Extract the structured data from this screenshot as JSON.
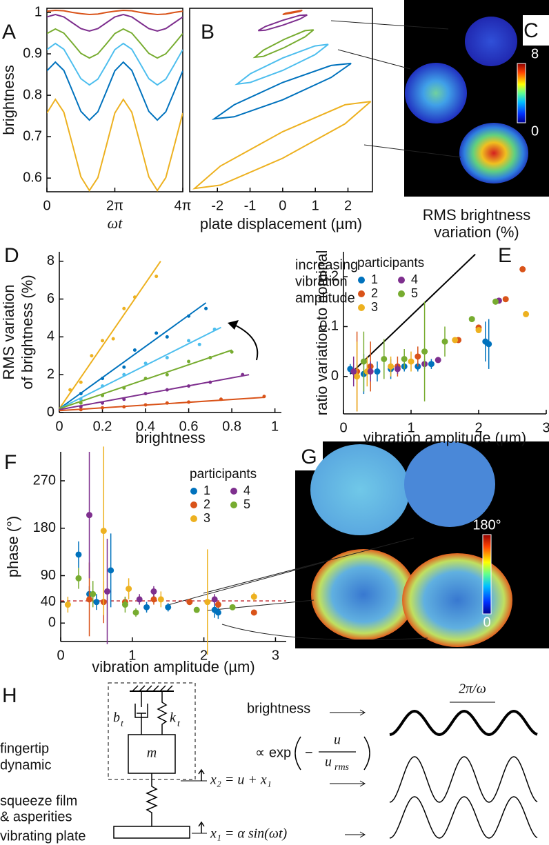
{
  "chart_data": [
    {
      "type": "line",
      "panel": "A",
      "xlabel": "ωt",
      "ylabel": "brightness",
      "x": [
        0,
        0.785,
        1.571,
        2.356,
        3.142,
        3.927,
        4.712,
        5.498,
        6.283,
        7.069,
        7.854,
        8.639,
        9.425,
        10.21,
        10.996,
        11.781,
        12.566
      ],
      "xlim": [
        0,
        12.566
      ],
      "xticks": [
        0,
        {
          "value": 6.283,
          "label": "2π"
        },
        {
          "value": 12.566,
          "label": "4π"
        }
      ],
      "ylim": [
        0.567,
        1.01
      ],
      "yticks": [
        0.6,
        0.7,
        0.8,
        0.9,
        1
      ],
      "series": [
        {
          "color": "#d95319",
          "values": [
            1.003,
            1.005,
            1.004,
            1.0,
            0.997,
            0.995,
            0.996,
            1.0,
            1.003,
            1.005,
            1.004,
            1.0,
            0.997,
            0.995,
            0.996,
            1.0,
            1.003
          ]
        },
        {
          "color": "#7e2f8e",
          "values": [
            0.989,
            0.995,
            0.989,
            0.975,
            0.961,
            0.955,
            0.961,
            0.975,
            0.989,
            0.995,
            0.989,
            0.975,
            0.961,
            0.955,
            0.961,
            0.975,
            0.989
          ]
        },
        {
          "color": "#77ac30",
          "values": [
            0.949,
            0.96,
            0.95,
            0.926,
            0.901,
            0.89,
            0.9,
            0.924,
            0.949,
            0.96,
            0.95,
            0.926,
            0.901,
            0.89,
            0.9,
            0.924,
            0.949
          ]
        },
        {
          "color": "#4dbeee",
          "values": [
            0.91,
            0.925,
            0.911,
            0.876,
            0.84,
            0.825,
            0.839,
            0.874,
            0.91,
            0.925,
            0.911,
            0.876,
            0.84,
            0.825,
            0.839,
            0.874,
            0.91
          ]
        },
        {
          "color": "#0072bd",
          "values": [
            0.859,
            0.88,
            0.86,
            0.811,
            0.761,
            0.74,
            0.76,
            0.809,
            0.859,
            0.88,
            0.86,
            0.811,
            0.761,
            0.74,
            0.76,
            0.809,
            0.859
          ]
        },
        {
          "color": "#edb120",
          "values": [
            0.757,
            0.79,
            0.759,
            0.682,
            0.603,
            0.57,
            0.601,
            0.678,
            0.757,
            0.79,
            0.759,
            0.682,
            0.603,
            0.57,
            0.601,
            0.678,
            0.757
          ]
        }
      ]
    },
    {
      "type": "line",
      "panel": "B",
      "xlabel": "plate displacement (µm)",
      "xlim": [
        -2.85,
        2.75
      ],
      "xticks": [
        -2,
        -1,
        0,
        1,
        2
      ],
      "ylim": [
        0.567,
        1.01
      ],
      "series": [
        {
          "color": "#d95319",
          "x": [
            0.6,
            0.512,
            0.3,
            0.088,
            0,
            0.088,
            0.3,
            0.512,
            0.6
          ],
          "values": [
            1.005,
            1.004,
            1.001,
            0.998,
            0.995,
            0.996,
            0.999,
            1.002,
            1.005
          ]
        },
        {
          "color": "#7e2f8e",
          "x": [
            0.75,
            0.53,
            0,
            -0.53,
            -0.75,
            -0.53,
            0,
            0.53,
            0.75
          ],
          "values": [
            0.994,
            0.993,
            0.981,
            0.966,
            0.956,
            0.957,
            0.969,
            0.984,
            0.994
          ]
        },
        {
          "color": "#77ac30",
          "x": [
            0.95,
            0.686,
            0.05,
            -0.586,
            -0.85,
            -0.586,
            0.05,
            0.686,
            0.95
          ],
          "values": [
            0.958,
            0.956,
            0.935,
            0.909,
            0.892,
            0.894,
            0.915,
            0.941,
            0.958
          ]
        },
        {
          "color": "#4dbeee",
          "x": [
            1.4,
            0.99,
            0,
            -0.99,
            -1.4,
            -0.99,
            0,
            0.99,
            1.4
          ],
          "values": [
            0.923,
            0.919,
            0.89,
            0.852,
            0.827,
            0.831,
            0.86,
            0.898,
            0.923
          ]
        },
        {
          "color": "#0072bd",
          "x": [
            2.1,
            1.485,
            0,
            -1.485,
            -2.1,
            -1.485,
            0,
            1.485,
            2.1
          ],
          "values": [
            0.877,
            0.872,
            0.831,
            0.777,
            0.743,
            0.748,
            0.789,
            0.843,
            0.877
          ]
        },
        {
          "color": "#edb120",
          "x": [
            2.7,
            1.909,
            0,
            -1.909,
            -2.7,
            -1.909,
            0,
            1.909,
            2.7
          ],
          "values": [
            0.785,
            0.777,
            0.712,
            0.629,
            0.575,
            0.583,
            0.648,
            0.731,
            0.785
          ]
        }
      ]
    },
    {
      "type": "heatmap",
      "panel": "C",
      "xlabel": [
        "RMS brightness",
        "variation (%)"
      ],
      "colorbar": {
        "lim": [
          0,
          8
        ],
        "ticks": [
          0,
          8
        ]
      }
    },
    {
      "type": "scatter",
      "panel": "D",
      "xlabel": "brightness",
      "ylabel": [
        "RMS variation",
        "of brightness (%)"
      ],
      "annotation": [
        "increasing",
        "vibration",
        "amplitude"
      ],
      "xlim": [
        0,
        1.03
      ],
      "xticks": [
        0,
        0.2,
        0.4,
        0.6,
        0.8,
        1
      ],
      "ylim": [
        0,
        8.5
      ],
      "yticks": [
        0,
        2,
        4,
        6,
        8
      ],
      "series": [
        {
          "color": "#edb120",
          "x": [
            0.05,
            0.1,
            0.15,
            0.2,
            0.25,
            0.3,
            0.35,
            0.45
          ],
          "values": [
            1.2,
            1.6,
            3.0,
            3.8,
            3.9,
            5.5,
            6.1,
            7.2
          ],
          "fit_x": [
            0,
            0.47
          ],
          "fit": [
            0.2,
            8.0
          ]
        },
        {
          "color": "#0072bd",
          "x": [
            0.1,
            0.2,
            0.3,
            0.35,
            0.45,
            0.5,
            0.6,
            0.68
          ],
          "values": [
            1.0,
            1.8,
            2.4,
            3.3,
            4.2,
            4.0,
            5.1,
            5.5
          ],
          "fit_x": [
            0,
            0.68
          ],
          "fit": [
            0.2,
            5.8
          ]
        },
        {
          "color": "#4dbeee",
          "x": [
            0.1,
            0.2,
            0.3,
            0.4,
            0.5,
            0.6,
            0.65,
            0.72
          ],
          "values": [
            0.7,
            1.4,
            2.0,
            2.6,
            2.9,
            3.8,
            3.6,
            4.4
          ],
          "fit_x": [
            0,
            0.75
          ],
          "fit": [
            0.2,
            4.5
          ]
        },
        {
          "color": "#77ac30",
          "x": [
            0.1,
            0.2,
            0.3,
            0.4,
            0.5,
            0.6,
            0.7,
            0.8
          ],
          "values": [
            0.5,
            0.9,
            1.3,
            1.8,
            2.0,
            2.7,
            2.9,
            3.2
          ],
          "fit_x": [
            0,
            0.8
          ],
          "fit": [
            0.2,
            3.3
          ]
        },
        {
          "color": "#7e2f8e",
          "x": [
            0.1,
            0.2,
            0.3,
            0.4,
            0.5,
            0.6,
            0.7,
            0.85
          ],
          "values": [
            0.3,
            0.5,
            0.7,
            1.0,
            1.2,
            1.4,
            1.6,
            2.0
          ],
          "fit_x": [
            0,
            0.88
          ],
          "fit": [
            0.15,
            2.0
          ]
        },
        {
          "color": "#d95319",
          "x": [
            0.1,
            0.2,
            0.3,
            0.4,
            0.5,
            0.6,
            0.75,
            0.95
          ],
          "values": [
            0.15,
            0.25,
            0.3,
            0.4,
            0.5,
            0.55,
            0.7,
            0.85
          ],
          "fit_x": [
            0,
            0.95
          ],
          "fit": [
            0.1,
            0.8
          ]
        }
      ]
    },
    {
      "type": "errorbar",
      "panel": "E",
      "xlabel": "vibration amplitude (µm)",
      "ylabel": "ratio variation to nominal",
      "legend_title": "participants",
      "xlim": [
        0,
        3
      ],
      "xticks": [
        0,
        1,
        2,
        3
      ],
      "ylim": [
        -0.075,
        0.25
      ],
      "yticks": [
        0,
        0.1,
        0.2
      ],
      "line": {
        "x": [
          0.1,
          1.95
        ],
        "values": [
          0.005,
          0.245
        ]
      },
      "series": [
        {
          "name": "1",
          "color": "#0072bd",
          "x": [
            0.1,
            0.3,
            0.5,
            0.7,
            0.9,
            1.1,
            1.3,
            2.1,
            2.15
          ],
          "values": [
            0.015,
            0.005,
            0.01,
            0.015,
            0.02,
            0.02,
            0.025,
            0.07,
            0.065
          ],
          "errors": [
            0.01,
            0.04,
            0.02,
            0.02,
            0.01,
            0.01,
            0.01,
            0.04,
            0.05
          ]
        },
        {
          "name": "2",
          "color": "#d95319",
          "x": [
            0.2,
            0.4,
            0.8,
            1.1,
            1.7,
            2.0,
            2.4,
            2.65
          ],
          "values": [
            0.01,
            0.02,
            0.02,
            0.04,
            0.073,
            0.098,
            0.155,
            0.215
          ],
          "errors": [
            0.08,
            0.05,
            0.02,
            0.02,
            0.004,
            0.005,
            0.003,
            0.005
          ]
        },
        {
          "name": "3",
          "color": "#edb120",
          "x": [
            0.2,
            0.35,
            0.7,
            1.0,
            1.65,
            2.0,
            2.7
          ],
          "values": [
            0.0,
            0.01,
            0.02,
            0.03,
            0.073,
            0.093,
            0.125
          ],
          "errors": [
            0.07,
            0.03,
            0.02,
            0.02,
            0.004,
            0.005,
            0.005
          ]
        },
        {
          "name": "4",
          "color": "#7e2f8e",
          "x": [
            0.15,
            0.4,
            0.8,
            1.2,
            1.4,
            2.3
          ],
          "values": [
            0.01,
            0.01,
            0.015,
            0.025,
            0.033,
            0.152
          ],
          "errors": [
            0.03,
            0.02,
            0.01,
            0.01,
            0.005,
            0.004
          ]
        },
        {
          "name": "5",
          "color": "#77ac30",
          "x": [
            0.3,
            0.6,
            0.9,
            1.2,
            1.5,
            1.9,
            2.25
          ],
          "values": [
            0.03,
            0.035,
            0.035,
            0.05,
            0.07,
            0.115,
            0.15
          ],
          "errors": [
            0.06,
            0.04,
            0.02,
            0.1,
            0.03,
            0.005,
            0.006
          ]
        }
      ]
    },
    {
      "type": "errorbar",
      "panel": "F",
      "xlabel": "vibration amplitude (µm)",
      "ylabel": "phase (°)",
      "legend_title": "participants",
      "xlim": [
        0,
        3.15
      ],
      "xticks": [
        0,
        1,
        2,
        3
      ],
      "ylim": [
        -35,
        325
      ],
      "yticks": [
        0,
        40,
        90,
        180,
        270
      ],
      "reference": 42,
      "series": [
        {
          "name": "1",
          "color": "#0072bd",
          "x": [
            0.25,
            0.4,
            0.5,
            0.7,
            1.2,
            1.5,
            2.15,
            2.2
          ],
          "values": [
            130,
            55,
            40,
            100,
            30,
            30,
            25,
            20
          ],
          "errors": [
            25,
            15,
            15,
            70,
            10,
            8,
            15,
            12
          ]
        },
        {
          "name": "2",
          "color": "#d95319",
          "x": [
            0.4,
            0.6,
            0.9,
            1.3,
            1.8,
            2.2,
            2.7
          ],
          "values": [
            45,
            40,
            40,
            45,
            40,
            35,
            20
          ],
          "errors": [
            70,
            40,
            10,
            10,
            5,
            5,
            5
          ]
        },
        {
          "name": "3",
          "color": "#edb120",
          "x": [
            0.1,
            0.6,
            0.95,
            1.4,
            2.05,
            2.7
          ],
          "values": [
            35,
            175,
            65,
            45,
            40,
            50
          ],
          "errors": [
            15,
            160,
            20,
            15,
            100,
            8
          ]
        },
        {
          "name": "4",
          "color": "#7e2f8e",
          "x": [
            0.4,
            0.65,
            1.1,
            1.3,
            2.15
          ],
          "values": [
            205,
            60,
            45,
            60,
            45
          ],
          "errors": [
            120,
            100,
            10,
            10,
            10
          ]
        },
        {
          "name": "5",
          "color": "#77ac30",
          "x": [
            0.25,
            0.45,
            0.9,
            1.05,
            1.9,
            2.4
          ],
          "values": [
            85,
            55,
            35,
            20,
            25,
            30
          ],
          "errors": [
            20,
            25,
            15,
            8,
            5,
            5
          ]
        }
      ]
    },
    {
      "type": "heatmap",
      "panel": "G",
      "colorbar": {
        "lim": [
          0,
          180
        ],
        "ticks": [
          0,
          {
            "value": 180,
            "label": "180°"
          }
        ]
      }
    }
  ],
  "diagram": {
    "panel": "H",
    "left_labels": [
      [
        "fingertip",
        "dynamic"
      ],
      [
        "squeeze film",
        "& asperities"
      ],
      [
        "vibrating plate"
      ]
    ],
    "damper": [
      "b",
      "t"
    ],
    "spring": [
      "k",
      "t"
    ],
    "mass": "m",
    "x2": "x₂ = u + x₁",
    "x1": "x₁ = α sin(ωt)",
    "brightness": "brightness",
    "proportional": "∝ exp",
    "minus": "−",
    "numerator": "u",
    "denominator": [
      "u",
      "rms"
    ],
    "period": "2π/ω"
  }
}
